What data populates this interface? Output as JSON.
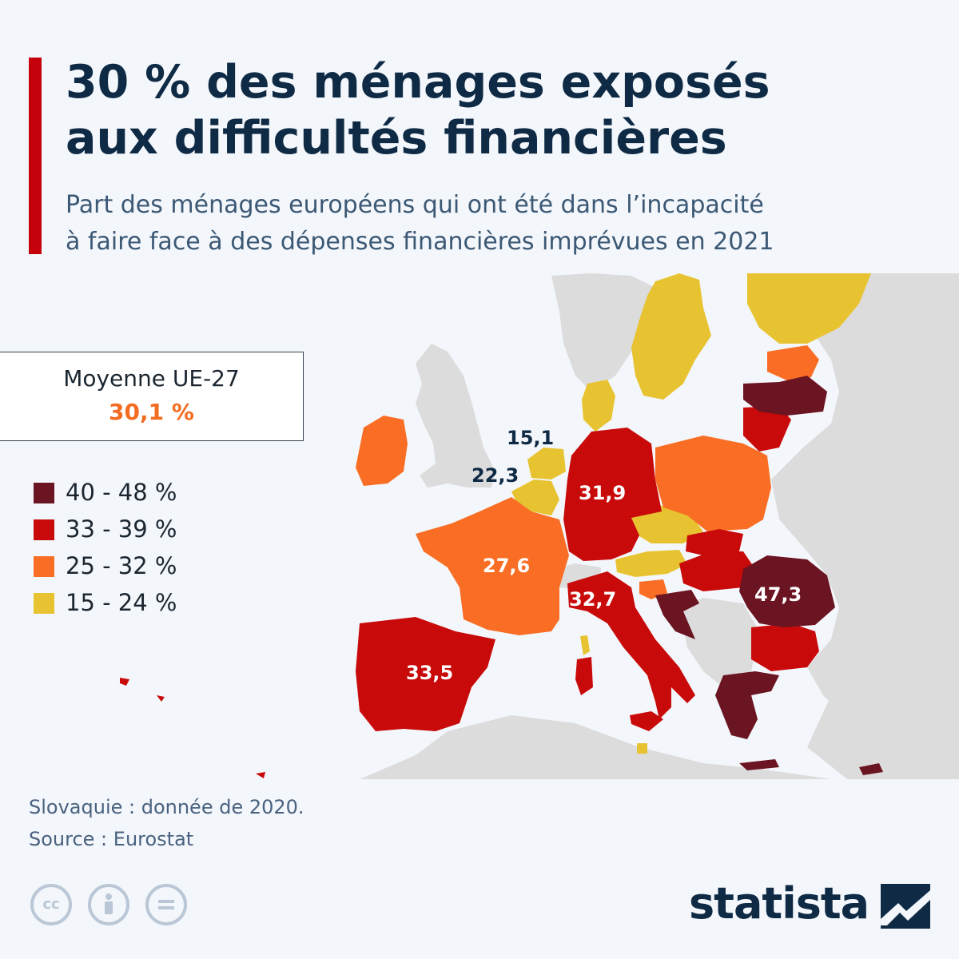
{
  "header": {
    "title_line1": "30 % des ménages exposés",
    "title_line2": "aux difficultés financières",
    "subtitle_line1": "Part des ménages européens qui ont été dans l’incapacité",
    "subtitle_line2": "à faire face à des dépenses financières imprévues en 2021"
  },
  "average": {
    "label": "Moyenne UE-27",
    "value": "30,1 %",
    "value_color": "#f26c21"
  },
  "legend": [
    {
      "label": "40 - 48 %",
      "color": "#6b1422"
    },
    {
      "label": "33 - 39 %",
      "color": "#c90a0a"
    },
    {
      "label": "25 - 32 %",
      "color": "#f96e24"
    },
    {
      "label": "15 - 24 %",
      "color": "#e8c331"
    }
  ],
  "map": {
    "colors": {
      "sea": "#f3f6fa",
      "non_eu_land": "#dcdcdc",
      "bin_40_48": "#6b1422",
      "bin_33_39": "#c90a0a",
      "bin_25_32": "#f96e24",
      "bin_15_24": "#e8c331"
    },
    "labels": [
      {
        "country": "Pays-Bas",
        "value": "15,1"
      },
      {
        "country": "Belgique",
        "value": "22,3"
      },
      {
        "country": "Allemagne",
        "value": "31,9"
      },
      {
        "country": "France",
        "value": "27,6"
      },
      {
        "country": "Italie",
        "value": "32,7"
      },
      {
        "country": "Espagne",
        "value": "33,5"
      },
      {
        "country": "Roumanie",
        "value": "47,3"
      }
    ]
  },
  "footer": {
    "note": "Slovaquie : donnée de 2020.",
    "source": "Source : Eurostat",
    "brand": "statista",
    "license_icons": [
      "cc-icon",
      "attribution-icon",
      "no-derivatives-icon"
    ]
  }
}
